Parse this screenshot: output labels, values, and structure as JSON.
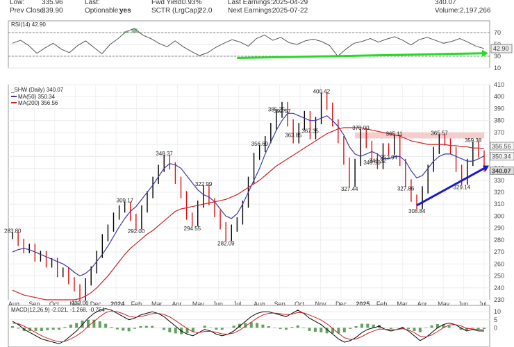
{
  "header": {
    "low_label": "Low:",
    "low_value": "335.96",
    "prev_close_label": "Prev Close:",
    "prev_close_value": "339.90",
    "last_label": "Last:",
    "optionable_label": "Optionable:",
    "optionable_value": "yes",
    "fwd_yield_label": "Fwd Yield:",
    "fwd_yield_value": "0.93%",
    "sctr_label": "SCTR (LrgCap):",
    "sctr_value": "22.0",
    "last_earnings_label": "Last Earnings:",
    "last_earnings_value": "2025-04-29",
    "next_earnings_label": "Next Earnings:",
    "next_earnings_value": "2025-07-22",
    "volume_label": "Volume:",
    "volume_value": "2,197,266",
    "last_value": "340.07"
  },
  "colors": {
    "price_up": "#000000",
    "price_down": "#e01010",
    "ma50": "#3a3aa0",
    "ma200": "#cc2222",
    "rsi_fill": "#3a8a3a",
    "green_trend": "#22dd22",
    "blue_trend": "#1a1acc",
    "resistance_box": "#f4b6b6",
    "macd_line": "#000000",
    "signal_line": "#cc2222",
    "histogram": "#3a8a3a"
  },
  "chart_data": [
    {
      "type": "line",
      "title": "RSI(14) 42.90",
      "ylim": [
        10,
        90
      ],
      "yticks": [
        70,
        50,
        30,
        10
      ],
      "reference_lines": [
        70,
        30
      ],
      "last_value": "42.90",
      "values": [
        52,
        57,
        48,
        35,
        44,
        52,
        42,
        36,
        48,
        56,
        45,
        34,
        50,
        60,
        72,
        77,
        66,
        60,
        52,
        46,
        56,
        46,
        38,
        31,
        36,
        45,
        52,
        58,
        54,
        47,
        60,
        66,
        57,
        62,
        53,
        50,
        56,
        59,
        55,
        48,
        30,
        42,
        52,
        55,
        60,
        54,
        59,
        63,
        57,
        49,
        58,
        62,
        57,
        52,
        55,
        60,
        54,
        47,
        43
      ]
    },
    {
      "type": "line",
      "title": "_SHW (Daily) 340.07",
      "ylim": [
        230,
        410
      ],
      "yticks": [
        410,
        400,
        390,
        380,
        370,
        360,
        350,
        340,
        330,
        320,
        310,
        300,
        290,
        280,
        270,
        260,
        250,
        240,
        230
      ],
      "x_ticks": [
        "Aug",
        "Sep",
        "Oct",
        "Nov",
        "Dec",
        "2024",
        "Feb",
        "Mar",
        "Apr",
        "May",
        "Jun",
        "Jul",
        "Aug",
        "Sep",
        "Oct",
        "Nov",
        "Dec",
        "2025",
        "Feb",
        "Mar",
        "Apr",
        "May",
        "Jun",
        "Jul"
      ],
      "series": [
        {
          "name": "_SHW (Daily) 340.07",
          "values": [
            283.8,
            278,
            272,
            274,
            265,
            268,
            260,
            262,
            252,
            254,
            246,
            240,
            232.06,
            245,
            255,
            268,
            282,
            290,
            300,
            306,
            309.17,
            299,
            292,
            306,
            318,
            330,
            340,
            348.37,
            342,
            330,
            318,
            300,
            294.55,
            310,
            322.99,
            312,
            302,
            292,
            282.09,
            290,
            296,
            310,
            330,
            350,
            356.69,
            364,
            375,
            385.25,
            392.57,
            378,
            363.85,
            375,
            385,
            367.35,
            380,
            400.42,
            392,
            378,
            364,
            346,
            327.44,
            345,
            370,
            360,
            349.5,
            342.32,
            358,
            353.94,
            365.11,
            345,
            327.86,
            315,
            308.84,
            322,
            340,
            355,
            365.57,
            362,
            355,
            340,
            329.14,
            345,
            359.38,
            352,
            340.07
          ]
        },
        {
          "name": "MA(50) 350.34",
          "values": [
            270,
            272,
            273,
            272,
            270,
            268,
            266,
            264,
            262,
            260,
            257,
            253,
            250,
            252,
            256,
            262,
            268,
            275,
            283,
            291,
            298,
            304,
            308,
            314,
            320,
            326,
            333,
            340,
            344,
            343,
            340,
            334,
            328,
            322,
            318,
            316,
            312,
            306,
            300,
            298,
            302,
            310,
            320,
            330,
            340,
            352,
            362,
            372,
            380,
            386,
            386,
            384,
            382,
            380,
            380,
            382,
            384,
            380,
            375,
            368,
            358,
            352,
            350,
            352,
            354,
            352,
            348,
            348,
            350,
            350,
            346,
            338,
            332,
            334,
            340,
            346,
            350,
            352,
            352,
            350,
            348,
            346,
            346,
            348,
            350.34
          ]
        },
        {
          "name": "MA(200) 356.56",
          "values": [
            238,
            236,
            234,
            233,
            232,
            231,
            230,
            230,
            230,
            230,
            230,
            230,
            231,
            233,
            236,
            240,
            245,
            250,
            256,
            262,
            268,
            273,
            277,
            281,
            285,
            288,
            292,
            296,
            300,
            304,
            306,
            307,
            308,
            309,
            310,
            311,
            312,
            313,
            314,
            316,
            318,
            321,
            324,
            327,
            330,
            334,
            338,
            342,
            345,
            348,
            351,
            354,
            357,
            360,
            363,
            366,
            369,
            371,
            373,
            374,
            374,
            374,
            374,
            373,
            372,
            371,
            370,
            369,
            368,
            367,
            365,
            363,
            362,
            361,
            360,
            360,
            360,
            360,
            359,
            359,
            358,
            358,
            357,
            357,
            356.56
          ]
        }
      ],
      "price_labels": [
        {
          "text": "283.80",
          "x": 0,
          "y": 283.8
        },
        {
          "text": "232.06",
          "x": 12,
          "y": 232.06
        },
        {
          "text": "309.17",
          "x": 20,
          "y": 309.17
        },
        {
          "text": "292.00",
          "x": 22,
          "y": 292.0
        },
        {
          "text": "348.37",
          "x": 27,
          "y": 348.37
        },
        {
          "text": "294.55",
          "x": 32,
          "y": 294.55
        },
        {
          "text": "322.99",
          "x": 34,
          "y": 322.99
        },
        {
          "text": "282.09",
          "x": 38,
          "y": 282.09
        },
        {
          "text": "356.69",
          "x": 44,
          "y": 356.69
        },
        {
          "text": "385.25",
          "x": 47,
          "y": 385.25
        },
        {
          "text": "392.57",
          "x": 48,
          "y": 392.57
        },
        {
          "text": "363.85",
          "x": 50,
          "y": 363.85
        },
        {
          "text": "367.35",
          "x": 53,
          "y": 367.35
        },
        {
          "text": "400.42",
          "x": 55,
          "y": 400.42
        },
        {
          "text": "327.44",
          "x": 60,
          "y": 327.44
        },
        {
          "text": "370.00",
          "x": 62,
          "y": 370.0
        },
        {
          "text": "349.50",
          "x": 64,
          "y": 349.5
        },
        {
          "text": "342.32",
          "x": 65,
          "y": 342.32
        },
        {
          "text": "353.94",
          "x": 67,
          "y": 353.94
        },
        {
          "text": "365.11",
          "x": 68,
          "y": 365.11
        },
        {
          "text": "327.86",
          "x": 70,
          "y": 327.86
        },
        {
          "text": "308.84",
          "x": 72,
          "y": 308.84
        },
        {
          "text": "365.57",
          "x": 76,
          "y": 365.57
        },
        {
          "text": "329.14",
          "x": 80,
          "y": 329.14
        },
        {
          "text": "359.38",
          "x": 82,
          "y": 359.38
        }
      ],
      "right_labels": [
        {
          "text": "356.56",
          "y": 356.56,
          "color": "#cc2222"
        },
        {
          "text": "350.34",
          "y": 350.34,
          "color": "#3a3aa0"
        },
        {
          "text": "340.07",
          "y": 340.07,
          "color": "#000000"
        }
      ],
      "resistance_zone": {
        "y_low": 365,
        "y_high": 370,
        "x_start": 61,
        "x_end": 84
      },
      "support_trend": {
        "x1": 72,
        "y1": 309,
        "x2": 84,
        "y2": 340
      },
      "rsi_trend": {
        "x1": 40,
        "y1": 27,
        "x2": 84,
        "y2": 35
      }
    },
    {
      "type": "line",
      "title": "MACD(12,26,9) -2.021, -1.268, -0.754",
      "ylim": [
        -12,
        14
      ],
      "yticks": [
        10,
        5,
        0
      ],
      "macd_values": [
        4,
        2,
        -1,
        -3,
        -5,
        -7,
        -8,
        -9,
        -10,
        -8,
        -5,
        -2,
        2,
        6,
        9,
        11,
        12,
        11,
        9,
        7,
        5,
        6,
        8,
        9,
        10,
        9,
        7,
        4,
        1,
        -2,
        -4,
        -5,
        -3,
        -1,
        -2,
        -4,
        -5,
        -4,
        -2,
        1,
        4,
        7,
        9,
        10,
        10,
        9,
        8,
        7,
        9,
        11,
        9,
        6,
        4,
        2,
        -1,
        -4,
        -7,
        -9,
        -8,
        -6,
        -3,
        -1,
        0,
        1,
        -1,
        -2,
        -1,
        0,
        -2,
        -5,
        -8,
        -6,
        -3,
        0,
        2,
        3,
        2,
        0,
        -2,
        -1,
        -2,
        -2.021
      ],
      "signal_values": [
        3,
        2.5,
        1,
        -1,
        -3,
        -5,
        -6.5,
        -7.8,
        -8.8,
        -8.5,
        -7,
        -5,
        -2.5,
        1,
        4,
        7,
        9.5,
        10.5,
        10,
        8.8,
        7.2,
        6.6,
        7,
        7.8,
        8.8,
        9,
        8.3,
        6.8,
        4.5,
        2,
        -0.5,
        -2.5,
        -3,
        -2.3,
        -2.2,
        -2.8,
        -3.8,
        -4,
        -3.3,
        -1.5,
        1,
        3.5,
        6,
        8,
        9,
        9.2,
        8.8,
        8.2,
        8.5,
        9.5,
        9.3,
        8,
        6.5,
        4.8,
        2.5,
        -0.5,
        -3.5,
        -6.2,
        -7.3,
        -7,
        -5.5,
        -3.5,
        -2,
        -0.8,
        -0.9,
        -1.3,
        -1.1,
        -0.6,
        -1.3,
        -3,
        -5.3,
        -5.7,
        -4.5,
        -2.3,
        0,
        1.8,
        2,
        1.2,
        -0.4,
        -0.7,
        -1.1,
        -1.268
      ]
    }
  ]
}
